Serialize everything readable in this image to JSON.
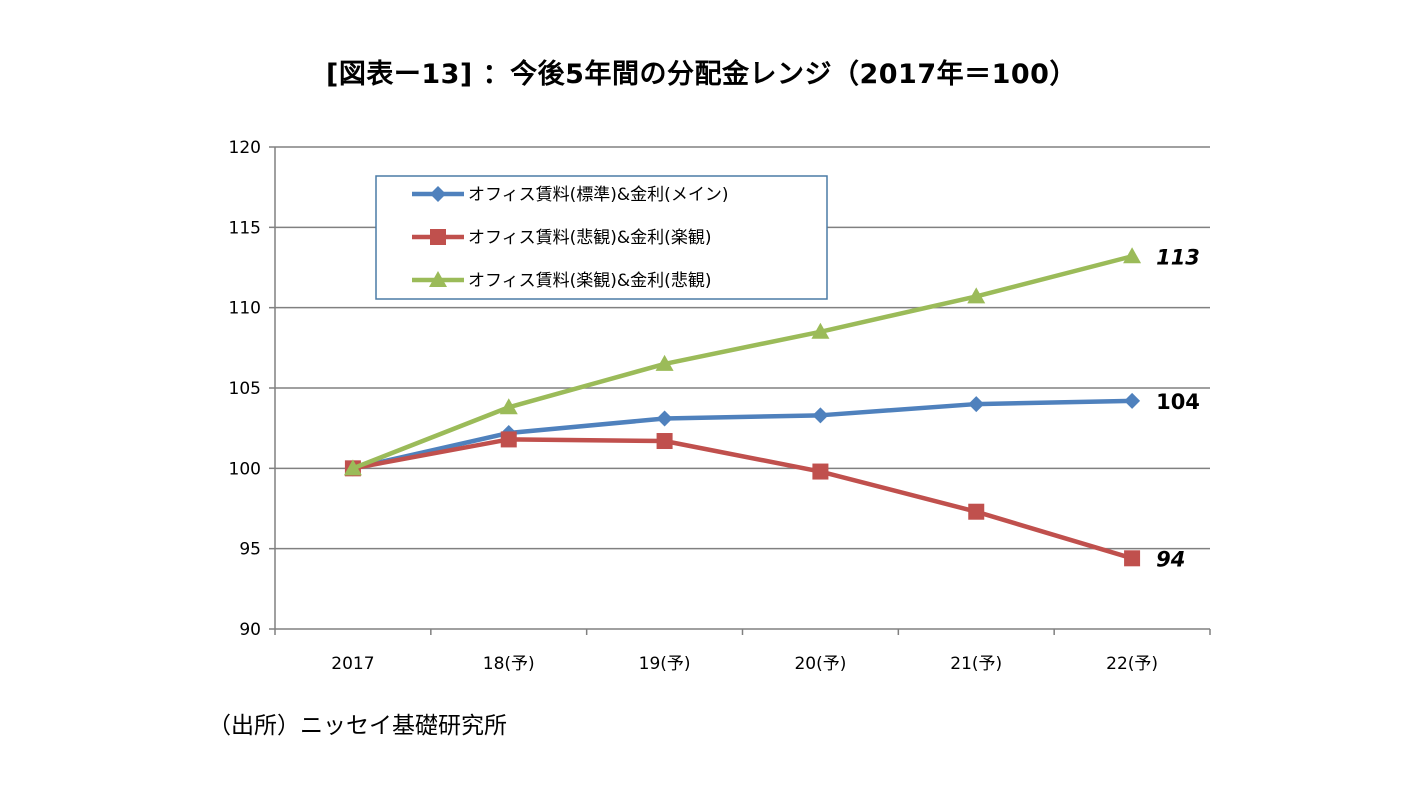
{
  "title": "[図表ー13] ：今後5年間の分配金レンジ（2017年＝100）",
  "source": "（出所）ニッセイ基礎研究所",
  "chart_data": {
    "type": "line",
    "title": "[図表ー13] ：今後5年間の分配金レンジ（2017年＝100）",
    "categories": [
      "2017",
      "18(予)",
      "19(予)",
      "20(予)",
      "21(予)",
      "22(予)"
    ],
    "ylim": [
      90,
      120
    ],
    "yticks": [
      90,
      95,
      100,
      105,
      110,
      115,
      120
    ],
    "grid": true,
    "legend_position": "top-left",
    "series": [
      {
        "name": "オフィス賃料(標準)&金利(メイン)",
        "color": "#4f81bd",
        "marker": "diamond",
        "values": [
          100,
          102.2,
          103.1,
          103.3,
          104.0,
          104.2
        ],
        "end_label": "104",
        "end_label_italic": false
      },
      {
        "name": "オフィス賃料(悲観)&金利(楽観)",
        "color": "#c0504d",
        "marker": "square",
        "values": [
          100,
          101.8,
          101.7,
          99.8,
          97.3,
          94.4
        ],
        "end_label": "94",
        "end_label_italic": true
      },
      {
        "name": "オフィス賃料(楽観)&金利(悲観)",
        "color": "#9bbb59",
        "marker": "triangle",
        "values": [
          100,
          103.8,
          106.5,
          108.5,
          110.7,
          113.2
        ],
        "end_label": "113",
        "end_label_italic": true
      }
    ]
  }
}
